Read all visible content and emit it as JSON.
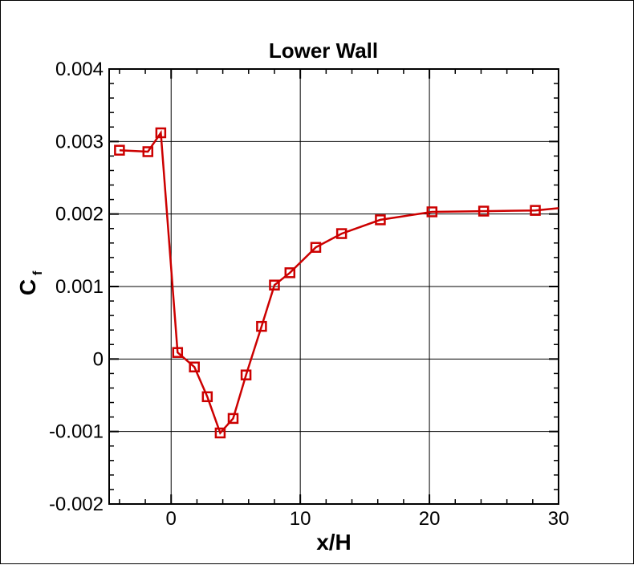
{
  "chart_data": {
    "type": "line",
    "title": "Lower Wall",
    "xlabel": "x/H",
    "ylabel_main": "C",
    "ylabel_sub": "f",
    "xlim": [
      -4.8,
      30
    ],
    "ylim": [
      -0.002,
      0.004
    ],
    "xticks": [
      0,
      10,
      20,
      30
    ],
    "xtick_labels": [
      "0",
      "10",
      "20",
      "30"
    ],
    "yticks": [
      -0.002,
      -0.001,
      0,
      0.001,
      0.002,
      0.003,
      0.004
    ],
    "ytick_labels": [
      "-0.002",
      "-0.001",
      "0",
      "0.001",
      "0.002",
      "0.003",
      "0.004"
    ],
    "grid": true,
    "series_color": "#cc0000",
    "marker": "square",
    "line_x": [
      -4.0,
      -1.8,
      -0.8,
      0.5,
      1.8,
      2.8,
      3.8,
      4.8,
      5.8,
      7.0,
      8.0,
      9.2,
      11.2,
      13.2,
      16.2,
      20.2,
      24.2,
      28.2,
      30.0
    ],
    "line_y": [
      0.00288,
      0.00286,
      0.00312,
      9e-05,
      -0.00011,
      -0.00052,
      -0.00102,
      -0.00082,
      -0.00022,
      0.00045,
      0.00102,
      0.00119,
      0.00154,
      0.00173,
      0.00192,
      0.00203,
      0.00204,
      0.00205,
      0.00208
    ],
    "marker_x": [
      -4.0,
      -1.8,
      -0.8,
      0.5,
      1.8,
      2.8,
      3.8,
      4.8,
      5.8,
      7.0,
      8.0,
      9.2,
      11.2,
      13.2,
      16.2,
      20.2,
      24.2,
      28.2
    ],
    "marker_y": [
      0.00288,
      0.00286,
      0.00312,
      9e-05,
      -0.00011,
      -0.00052,
      -0.00102,
      -0.00082,
      -0.00022,
      0.00045,
      0.00102,
      0.00119,
      0.00154,
      0.00173,
      0.00192,
      0.00203,
      0.00204,
      0.00205
    ]
  }
}
